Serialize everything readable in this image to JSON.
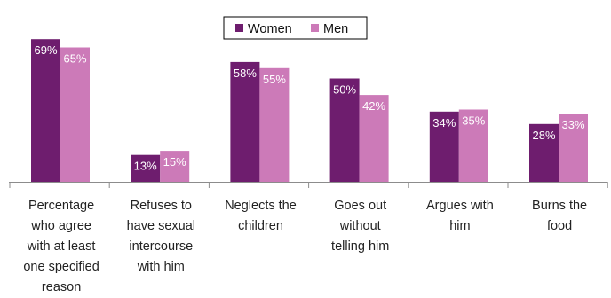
{
  "chart_data": {
    "type": "bar",
    "categories": [
      "Percentage who agree with at least one specified reason",
      "Refuses to have sexual intercourse with him",
      "Neglects the children",
      "Goes out without telling him",
      "Argues with him",
      "Burns the food"
    ],
    "category_lines": [
      [
        "Percentage",
        "who agree",
        "with at least",
        "one specified",
        "reason"
      ],
      [
        "Refuses to",
        "have sexual",
        "intercourse",
        "with him"
      ],
      [
        "Neglects the",
        "children"
      ],
      [
        "Goes out",
        "without",
        "telling him"
      ],
      [
        "Argues with",
        "him"
      ],
      [
        "Burns the",
        "food"
      ]
    ],
    "series": [
      {
        "name": "Women",
        "values": [
          69,
          13,
          58,
          50,
          34,
          28
        ],
        "labels": [
          "69%",
          "13%",
          "58%",
          "50%",
          "34%",
          "28%"
        ],
        "color": "#6e1d6e"
      },
      {
        "name": "Men",
        "values": [
          65,
          15,
          55,
          42,
          35,
          33
        ],
        "labels": [
          "65%",
          "15%",
          "55%",
          "42%",
          "35%",
          "33%"
        ],
        "color": "#cc7ab8"
      }
    ],
    "ylim": [
      0,
      80
    ],
    "grid": false,
    "legend_position": "top-center",
    "title": "",
    "xlabel": "",
    "ylabel": ""
  }
}
